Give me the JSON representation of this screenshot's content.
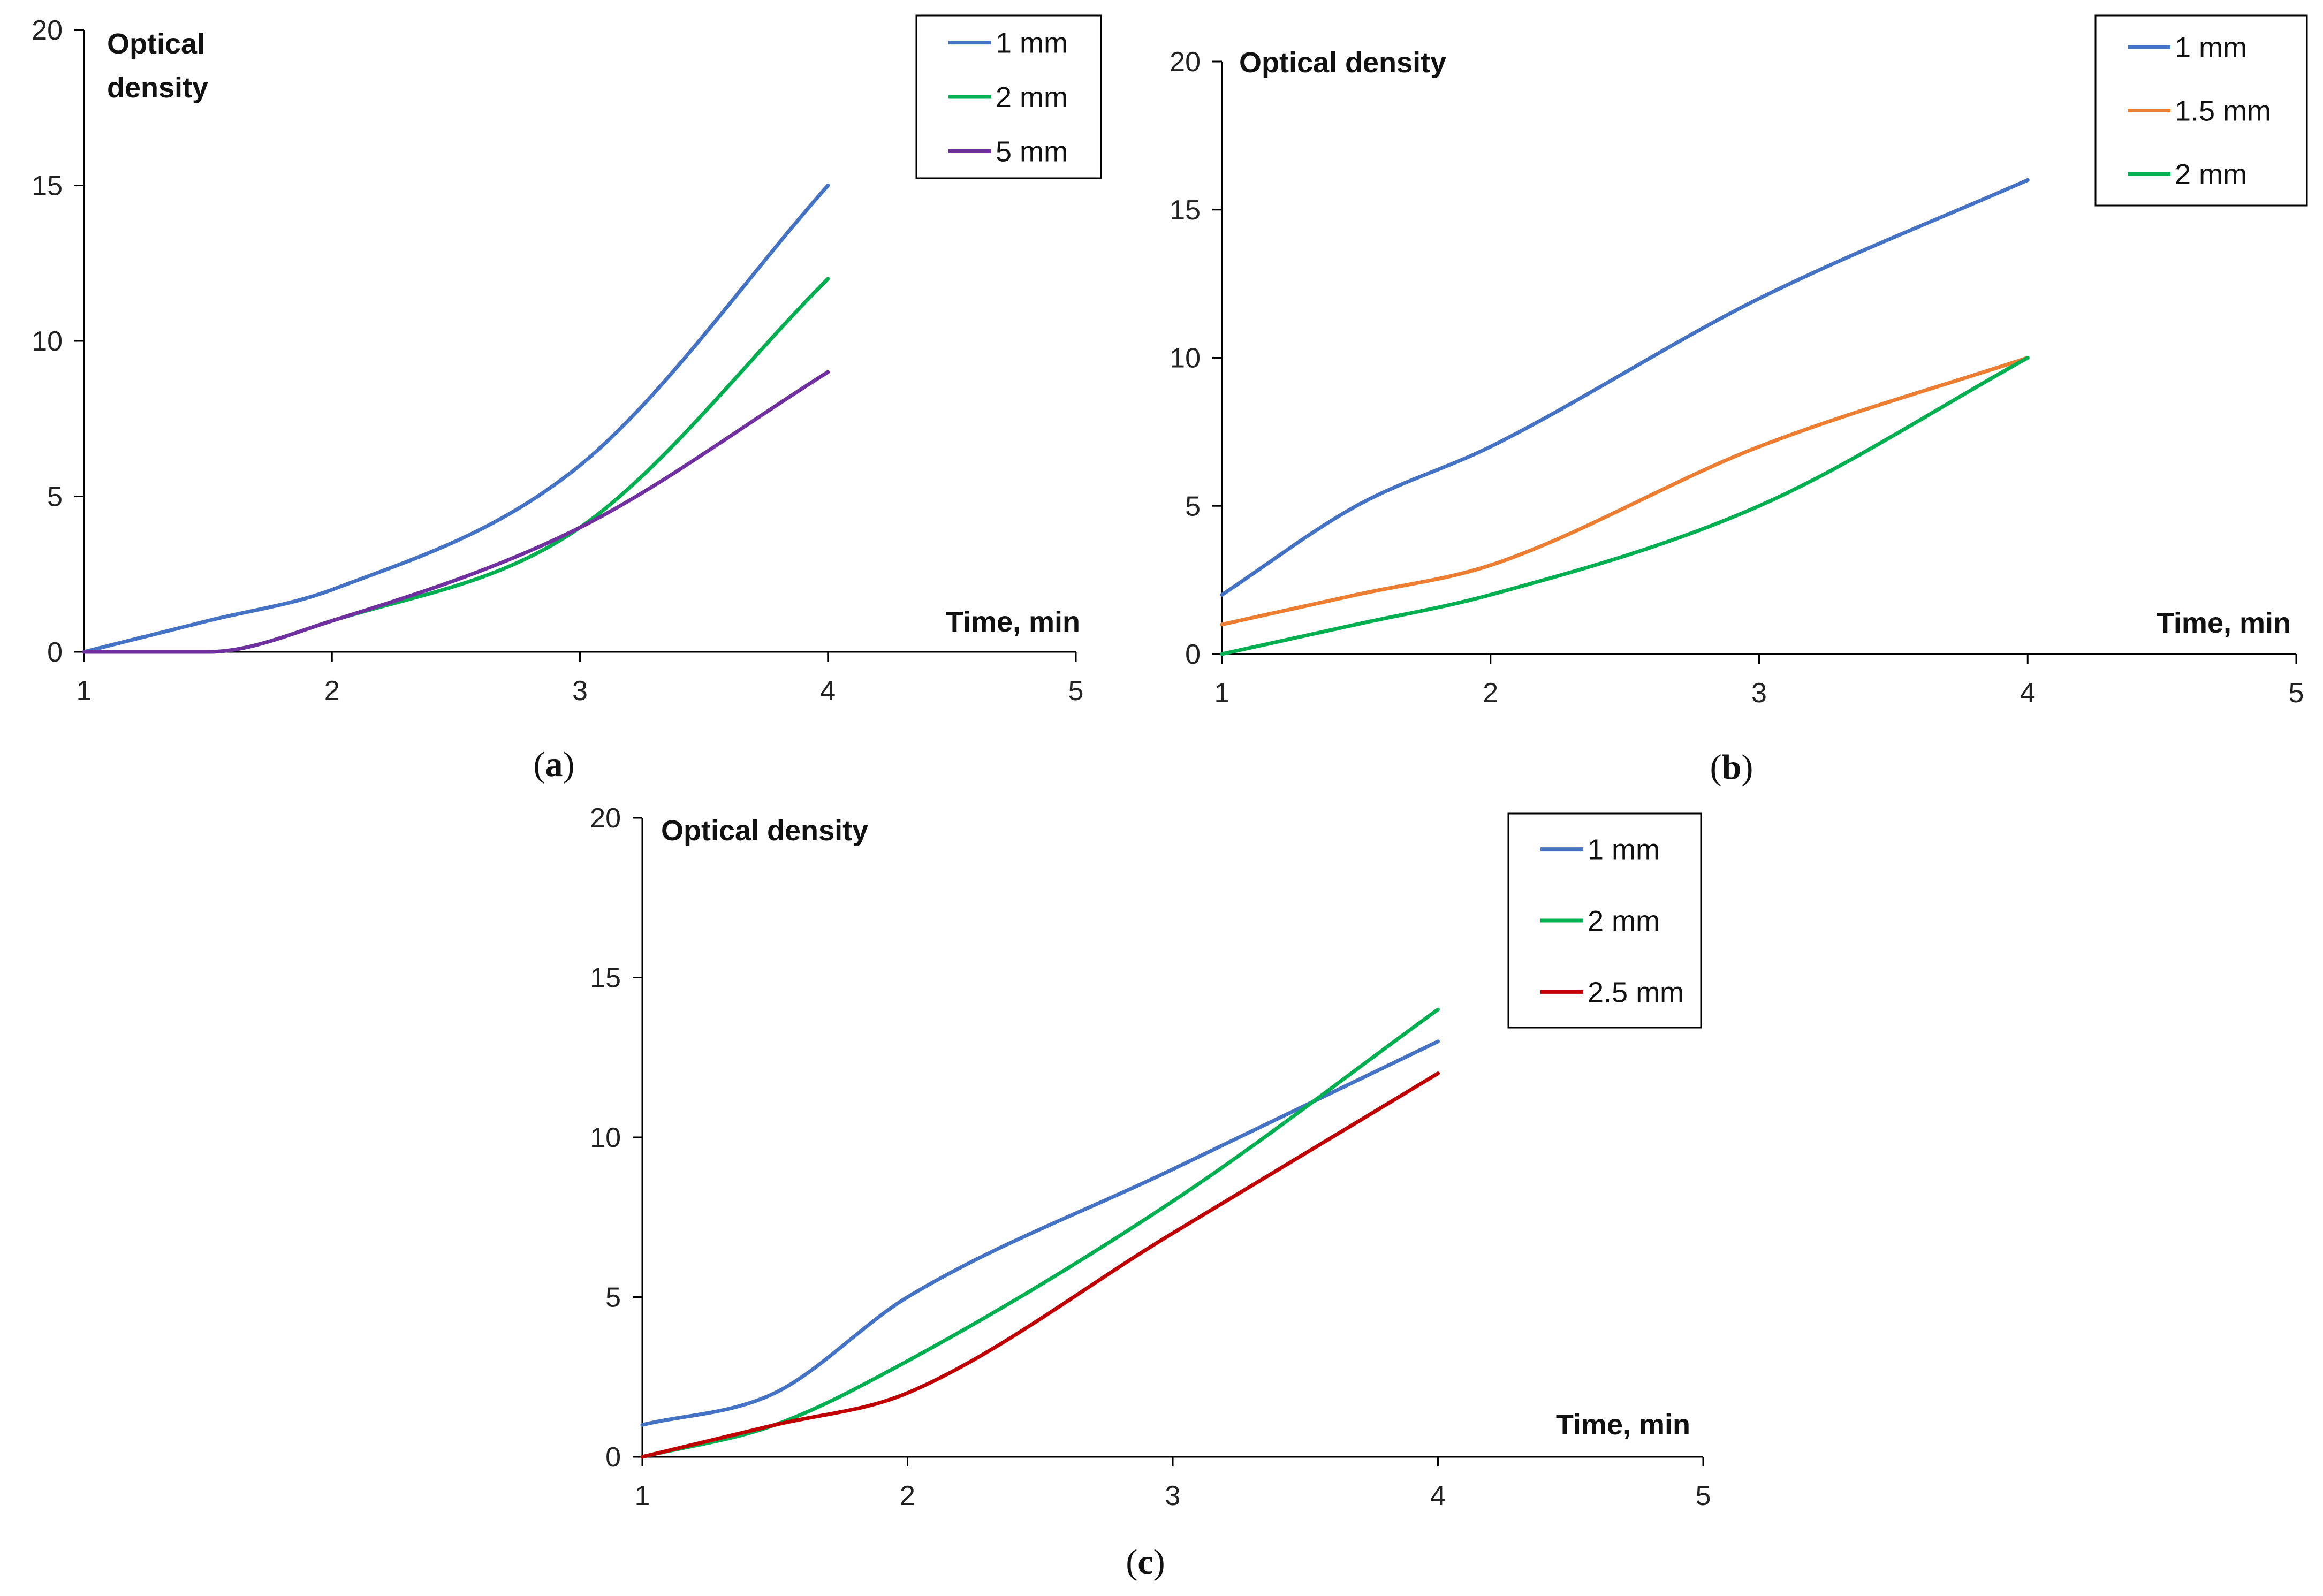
{
  "chart_data": [
    {
      "panel": "a",
      "type": "line",
      "caption": "a",
      "ylabel": "Optical density",
      "xlabel": "Time, min",
      "xlim": [
        1,
        5
      ],
      "ylim": [
        0,
        20
      ],
      "xticks": [
        1,
        2,
        3,
        4,
        5
      ],
      "yticks": [
        0,
        5,
        10,
        15,
        20
      ],
      "x": [
        1,
        1.5,
        2,
        3,
        4
      ],
      "series": [
        {
          "name": "1 mm",
          "color": "#4472C4",
          "values": [
            0,
            1,
            2,
            6,
            15
          ]
        },
        {
          "name": "2 mm",
          "color": "#00B050",
          "values": [
            0,
            0,
            1,
            4,
            12
          ]
        },
        {
          "name": "5 mm",
          "color": "#7030A0",
          "values": [
            0,
            0,
            1,
            4,
            9
          ]
        }
      ]
    },
    {
      "panel": "b",
      "type": "line",
      "caption": "b",
      "ylabel": "Optical density",
      "xlabel": "Time, min",
      "xlim": [
        1,
        5
      ],
      "ylim": [
        0,
        20
      ],
      "xticks": [
        1,
        2,
        3,
        4,
        5
      ],
      "yticks": [
        0,
        5,
        10,
        15,
        20
      ],
      "x": [
        1,
        1.5,
        2,
        3,
        4
      ],
      "series": [
        {
          "name": "1 mm",
          "color": "#4472C4",
          "values": [
            2,
            5,
            7,
            12,
            16
          ]
        },
        {
          "name": "1.5 mm",
          "color": "#ED7D31",
          "values": [
            1,
            2,
            3,
            7,
            10
          ]
        },
        {
          "name": "2 mm",
          "color": "#00B050",
          "values": [
            0,
            1,
            2,
            5,
            10
          ]
        }
      ]
    },
    {
      "panel": "c",
      "type": "line",
      "caption": "c",
      "ylabel": "Optical density",
      "xlabel": "Time, min",
      "xlim": [
        1,
        5
      ],
      "ylim": [
        0,
        20
      ],
      "xticks": [
        1,
        2,
        3,
        4,
        5
      ],
      "yticks": [
        0,
        5,
        10,
        15,
        20
      ],
      "x": [
        1,
        1.5,
        2,
        3,
        4
      ],
      "series": [
        {
          "name": "1 mm",
          "color": "#4472C4",
          "values": [
            1,
            2,
            5,
            9,
            13
          ]
        },
        {
          "name": "2 mm",
          "color": "#00B050",
          "values": [
            0,
            1,
            3,
            8,
            14
          ]
        },
        {
          "name": "2.5 mm",
          "color": "#C00000",
          "values": [
            0,
            1,
            2,
            7,
            12
          ]
        }
      ]
    }
  ]
}
